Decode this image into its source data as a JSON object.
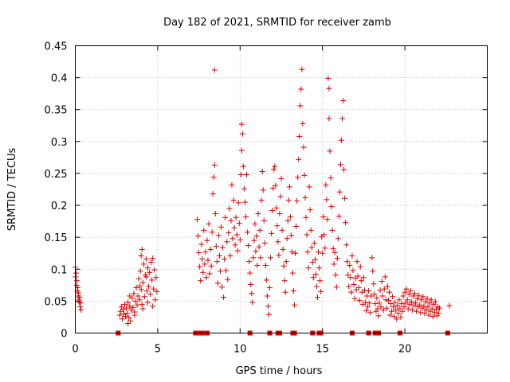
{
  "chart_data": {
    "type": "scatter",
    "title": "Day 182 of 2021, SRMTID for receiver zamb",
    "xlabel": "GPS time / hours",
    "ylabel": "SRMTID / TECUs",
    "xlim": [
      0,
      25
    ],
    "ylim": [
      0,
      0.45
    ],
    "grid": true,
    "marker": "plus",
    "color": "#e00000",
    "x_ticks": [
      0,
      5,
      10,
      15,
      20
    ],
    "x_tick_labels": [
      "0",
      "5",
      "10",
      "15",
      "20"
    ],
    "y_ticks": [
      0,
      0.05,
      0.1,
      0.15,
      0.2,
      0.25,
      0.3,
      0.35,
      0.4,
      0.45
    ],
    "y_tick_labels": [
      "0",
      "0.05",
      "0.1",
      "0.15",
      "0.2",
      "0.25",
      "0.3",
      "0.35",
      "0.4",
      "0.45"
    ],
    "zero_markers_x": [
      2.6,
      7.3,
      7.6,
      7.7,
      8.0,
      10.6,
      11.8,
      12.3,
      12.4,
      13.2,
      13.3,
      14.4,
      14.8,
      14.9,
      16.8,
      17.8,
      18.2,
      18.4,
      19.7,
      22.6
    ],
    "points": [
      [
        0.0,
        0.103
      ],
      [
        0.02,
        0.088
      ],
      [
        0.05,
        0.094
      ],
      [
        0.08,
        0.075
      ],
      [
        0.1,
        0.082
      ],
      [
        0.12,
        0.066
      ],
      [
        0.15,
        0.071
      ],
      [
        0.17,
        0.058
      ],
      [
        0.2,
        0.063
      ],
      [
        0.22,
        0.052
      ],
      [
        0.25,
        0.048
      ],
      [
        0.27,
        0.056
      ],
      [
        0.3,
        0.041
      ],
      [
        0.32,
        0.047
      ],
      [
        0.35,
        0.036
      ],
      [
        2.7,
        0.028
      ],
      [
        2.75,
        0.034
      ],
      [
        2.8,
        0.041
      ],
      [
        2.85,
        0.022
      ],
      [
        2.9,
        0.037
      ],
      [
        2.95,
        0.03
      ],
      [
        3.0,
        0.045
      ],
      [
        3.05,
        0.026
      ],
      [
        3.1,
        0.039
      ],
      [
        3.15,
        0.031
      ],
      [
        3.2,
        0.048
      ],
      [
        3.25,
        0.024
      ],
      [
        3.3,
        0.042
      ],
      [
        3.35,
        0.019
      ],
      [
        3.4,
        0.036
      ],
      [
        3.45,
        0.055
      ],
      [
        3.5,
        0.04
      ],
      [
        3.55,
        0.062
      ],
      [
        3.6,
        0.033
      ],
      [
        3.65,
        0.05
      ],
      [
        3.7,
        0.071
      ],
      [
        3.75,
        0.044
      ],
      [
        3.8,
        0.058
      ],
      [
        3.85,
        0.085
      ],
      [
        3.9,
        0.052
      ],
      [
        3.95,
        0.097
      ],
      [
        4.0,
        0.068
      ],
      [
        4.0,
        0.121
      ],
      [
        4.05,
        0.131
      ],
      [
        4.05,
        0.045
      ],
      [
        4.1,
        0.079
      ],
      [
        4.15,
        0.108
      ],
      [
        4.2,
        0.057
      ],
      [
        4.25,
        0.091
      ],
      [
        4.3,
        0.116
      ],
      [
        4.35,
        0.066
      ],
      [
        4.4,
        0.102
      ],
      [
        4.45,
        0.073
      ],
      [
        4.5,
        0.095
      ],
      [
        4.55,
        0.061
      ],
      [
        4.6,
        0.111
      ],
      [
        4.65,
        0.083
      ],
      [
        4.7,
        0.117
      ],
      [
        4.75,
        0.069
      ],
      [
        4.8,
        0.099
      ],
      [
        4.85,
        0.052
      ],
      [
        4.9,
        0.087
      ],
      [
        4.95,
        0.065
      ],
      [
        3.2,
        0.015
      ],
      [
        3.6,
        0.028
      ],
      [
        4.1,
        0.038
      ],
      [
        4.4,
        0.048
      ],
      [
        4.7,
        0.042
      ],
      [
        3.3,
        0.058
      ],
      [
        3.9,
        0.074
      ],
      [
        4.3,
        0.088
      ],
      [
        7.4,
        0.178
      ],
      [
        7.45,
        0.152
      ],
      [
        7.5,
        0.126
      ],
      [
        7.55,
        0.104
      ],
      [
        7.6,
        0.082
      ],
      [
        7.65,
        0.139
      ],
      [
        7.7,
        0.116
      ],
      [
        7.75,
        0.095
      ],
      [
        7.8,
        0.161
      ],
      [
        7.85,
        0.108
      ],
      [
        7.9,
        0.127
      ],
      [
        7.95,
        0.087
      ],
      [
        8.0,
        0.145
      ],
      [
        8.05,
        0.114
      ],
      [
        8.1,
        0.171
      ],
      [
        8.15,
        0.093
      ],
      [
        8.2,
        0.131
      ],
      [
        8.25,
        0.105
      ],
      [
        8.3,
        0.158
      ],
      [
        8.35,
        0.218
      ],
      [
        8.4,
        0.244
      ],
      [
        8.45,
        0.412
      ],
      [
        8.45,
        0.263
      ],
      [
        8.5,
        0.187
      ],
      [
        8.55,
        0.136
      ],
      [
        8.6,
        0.112
      ],
      [
        8.65,
        0.078
      ],
      [
        8.7,
        0.153
      ],
      [
        8.75,
        0.121
      ],
      [
        8.8,
        0.097
      ],
      [
        8.85,
        0.166
      ],
      [
        8.9,
        0.072
      ],
      [
        8.95,
        0.134
      ],
      [
        9.0,
        0.056
      ],
      [
        9.05,
        0.116
      ],
      [
        9.1,
        0.181
      ],
      [
        9.15,
        0.098
      ],
      [
        9.2,
        0.143
      ],
      [
        9.25,
        0.084
      ],
      [
        9.3,
        0.157
      ],
      [
        9.35,
        0.195
      ],
      [
        9.4,
        0.121
      ],
      [
        9.45,
        0.176
      ],
      [
        9.5,
        0.232
      ],
      [
        9.55,
        0.148
      ],
      [
        9.6,
        0.208
      ],
      [
        9.65,
        0.165
      ],
      [
        9.7,
        0.138
      ],
      [
        9.75,
        0.181
      ],
      [
        9.8,
        0.154
      ],
      [
        9.85,
        0.129
      ],
      [
        9.9,
        0.204
      ],
      [
        9.95,
        0.172
      ],
      [
        10.0,
        0.146
      ],
      [
        10.05,
        0.248
      ],
      [
        10.1,
        0.327
      ],
      [
        10.1,
        0.286
      ],
      [
        10.15,
        0.312
      ],
      [
        10.2,
        0.261
      ],
      [
        10.25,
        0.226
      ],
      [
        10.3,
        0.205
      ],
      [
        10.35,
        0.182
      ],
      [
        10.4,
        0.248
      ],
      [
        10.45,
        0.158
      ],
      [
        10.5,
        0.137
      ],
      [
        10.55,
        0.112
      ],
      [
        10.6,
        0.094
      ],
      [
        10.65,
        0.076
      ],
      [
        10.7,
        0.062
      ],
      [
        10.75,
        0.048
      ],
      [
        10.8,
        0.118
      ],
      [
        10.85,
        0.145
      ],
      [
        10.9,
        0.171
      ],
      [
        10.95,
        0.128
      ],
      [
        11.0,
        0.152
      ],
      [
        11.05,
        0.106
      ],
      [
        11.1,
        0.187
      ],
      [
        11.15,
        0.135
      ],
      [
        11.2,
        0.161
      ],
      [
        11.25,
        0.118
      ],
      [
        11.3,
        0.208
      ],
      [
        11.35,
        0.253
      ],
      [
        11.4,
        0.224
      ],
      [
        11.45,
        0.176
      ],
      [
        11.5,
        0.141
      ],
      [
        11.55,
        0.106
      ],
      [
        11.6,
        0.083
      ],
      [
        11.65,
        0.058
      ],
      [
        11.7,
        0.042
      ],
      [
        11.75,
        0.029
      ],
      [
        11.8,
        0.071
      ],
      [
        11.85,
        0.118
      ],
      [
        11.9,
        0.156
      ],
      [
        11.95,
        0.192
      ],
      [
        12.0,
        0.227
      ],
      [
        12.05,
        0.256
      ],
      [
        12.1,
        0.261
      ],
      [
        12.15,
        0.231
      ],
      [
        12.2,
        0.196
      ],
      [
        12.25,
        0.168
      ],
      [
        12.3,
        0.143
      ],
      [
        12.35,
        0.122
      ],
      [
        12.4,
        0.187
      ],
      [
        12.45,
        0.214
      ],
      [
        12.5,
        0.242
      ],
      [
        12.55,
        0.161
      ],
      [
        12.6,
        0.131
      ],
      [
        12.65,
        0.105
      ],
      [
        12.7,
        0.082
      ],
      [
        12.75,
        0.064
      ],
      [
        12.8,
        0.112
      ],
      [
        12.85,
        0.148
      ],
      [
        12.9,
        0.176
      ],
      [
        12.95,
        0.208
      ],
      [
        13.0,
        0.229
      ],
      [
        13.05,
        0.182
      ],
      [
        13.1,
        0.153
      ],
      [
        13.15,
        0.127
      ],
      [
        13.2,
        0.094
      ],
      [
        13.25,
        0.066
      ],
      [
        13.3,
        0.044
      ],
      [
        13.35,
        0.125
      ],
      [
        13.4,
        0.167
      ],
      [
        13.45,
        0.207
      ],
      [
        13.5,
        0.244
      ],
      [
        13.55,
        0.272
      ],
      [
        13.6,
        0.308
      ],
      [
        13.65,
        0.356
      ],
      [
        13.7,
        0.382
      ],
      [
        13.75,
        0.413
      ],
      [
        13.8,
        0.328
      ],
      [
        13.85,
        0.291
      ],
      [
        13.9,
        0.247
      ],
      [
        13.95,
        0.212
      ],
      [
        14.0,
        0.181
      ],
      [
        14.05,
        0.154
      ],
      [
        14.1,
        0.127
      ],
      [
        14.15,
        0.102
      ],
      [
        14.2,
        0.229
      ],
      [
        14.25,
        0.193
      ],
      [
        14.3,
        0.161
      ],
      [
        14.35,
        0.134
      ],
      [
        14.4,
        0.111
      ],
      [
        14.45,
        0.087
      ],
      [
        14.5,
        0.141
      ],
      [
        14.55,
        0.115
      ],
      [
        14.6,
        0.092
      ],
      [
        14.65,
        0.073
      ],
      [
        14.7,
        0.056
      ],
      [
        14.75,
        0.127
      ],
      [
        14.8,
        0.102
      ],
      [
        14.85,
        0.082
      ],
      [
        14.9,
        0.065
      ],
      [
        14.95,
        0.151
      ],
      [
        15.0,
        0.125
      ],
      [
        15.05,
        0.182
      ],
      [
        15.1,
        0.154
      ],
      [
        15.15,
        0.133
      ],
      [
        15.2,
        0.232
      ],
      [
        15.25,
        0.209
      ],
      [
        15.3,
        0.178
      ],
      [
        15.35,
        0.399
      ],
      [
        15.4,
        0.383
      ],
      [
        15.4,
        0.336
      ],
      [
        15.45,
        0.285
      ],
      [
        15.5,
        0.243
      ],
      [
        15.55,
        0.198
      ],
      [
        15.6,
        0.161
      ],
      [
        15.65,
        0.132
      ],
      [
        15.7,
        0.108
      ],
      [
        15.75,
        0.126
      ],
      [
        15.8,
        0.091
      ],
      [
        15.85,
        0.072
      ],
      [
        15.9,
        0.117
      ],
      [
        15.95,
        0.148
      ],
      [
        16.0,
        0.183
      ],
      [
        16.05,
        0.221
      ],
      [
        16.1,
        0.264
      ],
      [
        16.15,
        0.302
      ],
      [
        16.2,
        0.336
      ],
      [
        16.25,
        0.364
      ],
      [
        16.3,
        0.256
      ],
      [
        16.35,
        0.211
      ],
      [
        16.4,
        0.173
      ],
      [
        16.45,
        0.138
      ],
      [
        16.5,
        0.112
      ],
      [
        16.55,
        0.091
      ],
      [
        16.6,
        0.073
      ],
      [
        16.65,
        0.106
      ],
      [
        16.7,
        0.087
      ],
      [
        16.75,
        0.064
      ],
      [
        16.8,
        0.121
      ],
      [
        16.85,
        0.098
      ],
      [
        16.9,
        0.076
      ],
      [
        16.95,
        0.054
      ],
      [
        17.0,
        0.086
      ],
      [
        17.05,
        0.068
      ],
      [
        17.1,
        0.112
      ],
      [
        17.15,
        0.089
      ],
      [
        17.2,
        0.071
      ],
      [
        17.25,
        0.051
      ],
      [
        17.3,
        0.104
      ],
      [
        17.35,
        0.082
      ],
      [
        17.4,
        0.064
      ],
      [
        17.45,
        0.045
      ],
      [
        17.5,
        0.087
      ],
      [
        17.55,
        0.067
      ],
      [
        17.6,
        0.048
      ],
      [
        17.65,
        0.035
      ],
      [
        17.7,
        0.058
      ],
      [
        17.75,
        0.041
      ],
      [
        17.8,
        0.066
      ],
      [
        17.85,
        0.047
      ],
      [
        17.9,
        0.032
      ],
      [
        17.95,
        0.058
      ],
      [
        18.0,
        0.118
      ],
      [
        18.05,
        0.097
      ],
      [
        18.1,
        0.077
      ],
      [
        18.15,
        0.061
      ],
      [
        18.2,
        0.046
      ],
      [
        18.25,
        0.034
      ],
      [
        18.3,
        0.055
      ],
      [
        18.35,
        0.038
      ],
      [
        18.4,
        0.027
      ],
      [
        18.45,
        0.047
      ],
      [
        18.5,
        0.067
      ],
      [
        18.55,
        0.041
      ],
      [
        18.6,
        0.081
      ],
      [
        18.65,
        0.058
      ],
      [
        18.7,
        0.036
      ],
      [
        18.75,
        0.069
      ],
      [
        18.8,
        0.088
      ],
      [
        18.85,
        0.052
      ],
      [
        18.9,
        0.039
      ],
      [
        18.95,
        0.073
      ],
      [
        19.0,
        0.051
      ],
      [
        19.05,
        0.064
      ],
      [
        19.1,
        0.028
      ],
      [
        19.15,
        0.046
      ],
      [
        19.2,
        0.034
      ],
      [
        19.25,
        0.057
      ],
      [
        19.3,
        0.041
      ],
      [
        19.35,
        0.026
      ],
      [
        19.4,
        0.048
      ],
      [
        19.45,
        0.036
      ],
      [
        19.5,
        0.022
      ],
      [
        19.55,
        0.043
      ],
      [
        19.6,
        0.031
      ],
      [
        19.65,
        0.052
      ],
      [
        19.7,
        0.038
      ],
      [
        19.75,
        0.025
      ],
      [
        19.8,
        0.046
      ],
      [
        19.85,
        0.034
      ],
      [
        19.9,
        0.058
      ],
      [
        19.95,
        0.041
      ],
      [
        20.0,
        0.064
      ],
      [
        20.05,
        0.047
      ],
      [
        20.1,
        0.069
      ],
      [
        20.15,
        0.052
      ],
      [
        20.2,
        0.038
      ],
      [
        20.25,
        0.061
      ],
      [
        20.3,
        0.045
      ],
      [
        20.35,
        0.066
      ],
      [
        20.4,
        0.049
      ],
      [
        20.45,
        0.036
      ],
      [
        20.5,
        0.058
      ],
      [
        20.55,
        0.043
      ],
      [
        20.6,
        0.062
      ],
      [
        20.65,
        0.047
      ],
      [
        20.7,
        0.034
      ],
      [
        20.75,
        0.054
      ],
      [
        20.8,
        0.041
      ],
      [
        20.85,
        0.059
      ],
      [
        20.9,
        0.044
      ],
      [
        20.95,
        0.032
      ],
      [
        21.0,
        0.052
      ],
      [
        21.05,
        0.039
      ],
      [
        21.1,
        0.057
      ],
      [
        21.15,
        0.042
      ],
      [
        21.2,
        0.031
      ],
      [
        21.25,
        0.049
      ],
      [
        21.3,
        0.036
      ],
      [
        21.35,
        0.054
      ],
      [
        21.4,
        0.041
      ],
      [
        21.45,
        0.028
      ],
      [
        21.5,
        0.047
      ],
      [
        21.55,
        0.034
      ],
      [
        21.6,
        0.052
      ],
      [
        21.65,
        0.038
      ],
      [
        21.7,
        0.026
      ],
      [
        21.75,
        0.045
      ],
      [
        21.8,
        0.032
      ],
      [
        21.85,
        0.049
      ],
      [
        21.9,
        0.037
      ],
      [
        21.95,
        0.027
      ],
      [
        22.0,
        0.041
      ],
      [
        22.05,
        0.031
      ],
      [
        22.1,
        0.039
      ],
      [
        22.7,
        0.043
      ]
    ]
  }
}
